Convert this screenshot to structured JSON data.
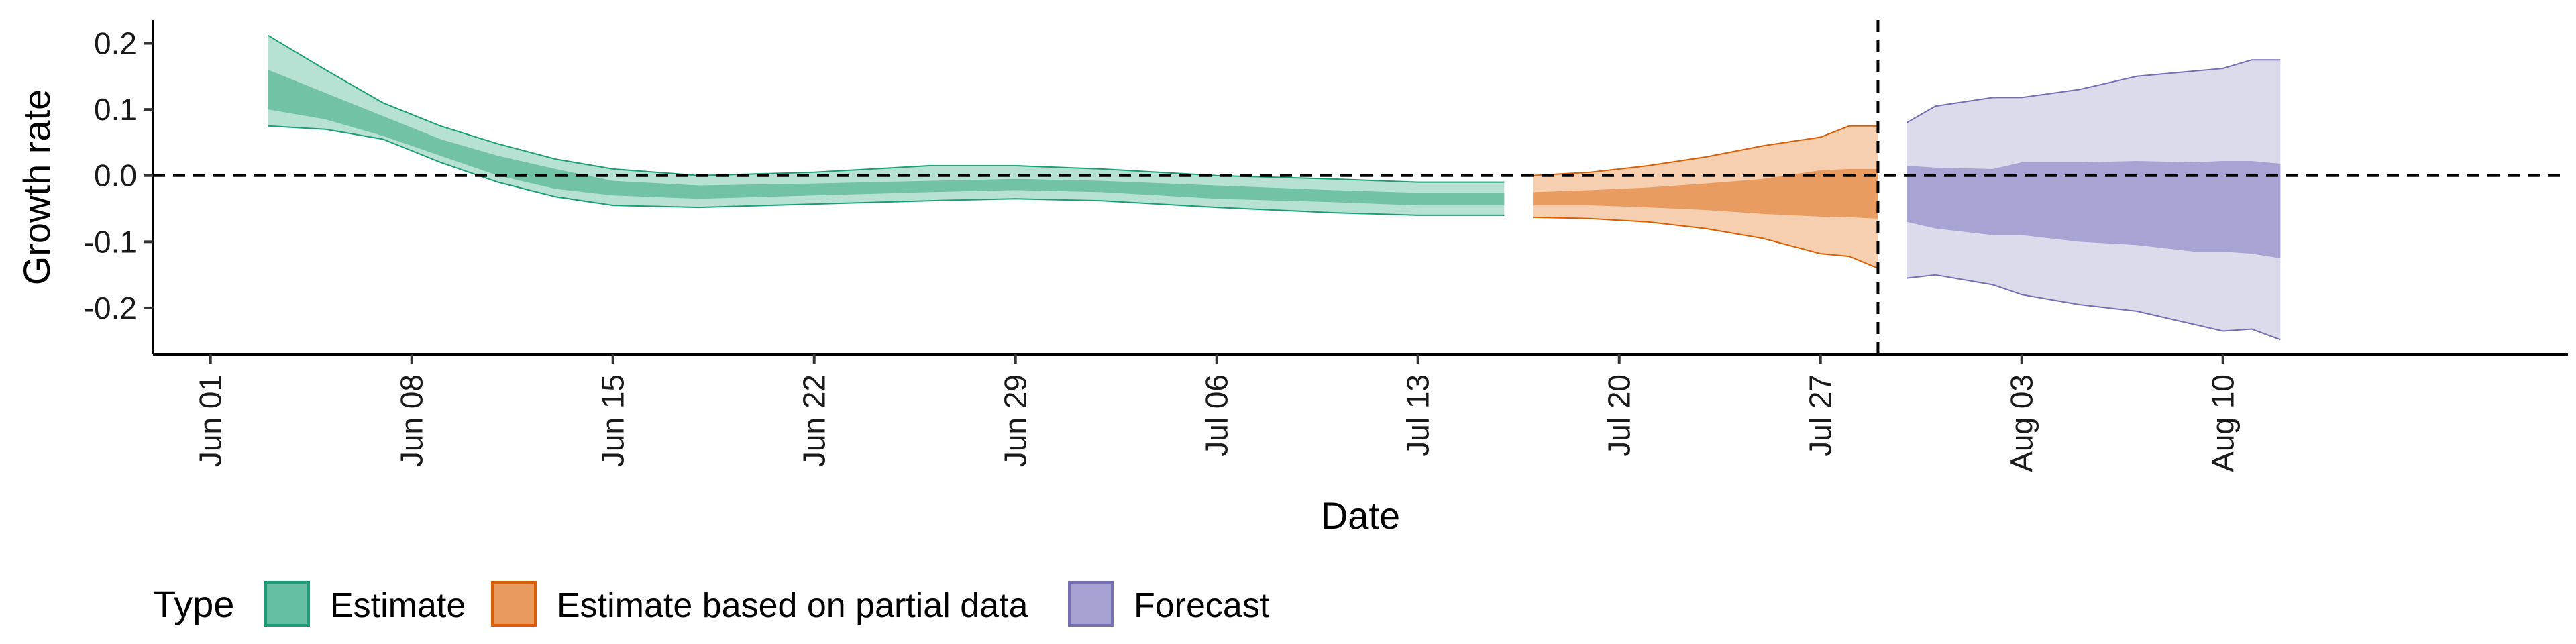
{
  "chart_data": {
    "type": "area",
    "xlabel": "Date",
    "ylabel": "Growth rate",
    "x_range": [
      "2020-05-30",
      "2020-08-22"
    ],
    "ylim": [
      -0.27,
      0.235
    ],
    "yticks": [
      0.2,
      0.1,
      0.0,
      -0.1,
      -0.2
    ],
    "ytick_labels": [
      "0.2",
      "0.1",
      "0.0",
      "-0.1",
      "-0.2"
    ],
    "xticks": [
      "2020-06-01",
      "2020-06-08",
      "2020-06-15",
      "2020-06-22",
      "2020-06-29",
      "2020-07-06",
      "2020-07-13",
      "2020-07-20",
      "2020-07-27",
      "2020-08-03",
      "2020-08-10"
    ],
    "xtick_labels": [
      "Jun 01",
      "Jun 08",
      "Jun 15",
      "Jun 22",
      "Jun 29",
      "Jul 06",
      "Jul 13",
      "Jul 20",
      "Jul 27",
      "Aug 03",
      "Aug 10"
    ],
    "hline_y": 0.0,
    "vline_x": "2020-07-29",
    "grid": false,
    "legend": {
      "title": "Type",
      "position": "bottom-left",
      "items": [
        {
          "label": "Estimate",
          "fill": "#66bfa3",
          "stroke": "#1b9e77"
        },
        {
          "label": "Estimate based on partial data",
          "fill": "#e99a5e",
          "stroke": "#d95f02"
        },
        {
          "label": "Forecast",
          "fill": "#a6a2d3",
          "stroke": "#7570b3"
        }
      ]
    },
    "series": [
      {
        "name": "Estimate",
        "outer_fill": "#b7e1d3",
        "inner_fill": "#72c2a6",
        "stroke": "#1b9e77",
        "x": [
          "2020-06-03",
          "2020-06-05",
          "2020-06-07",
          "2020-06-09",
          "2020-06-11",
          "2020-06-13",
          "2020-06-15",
          "2020-06-18",
          "2020-06-22",
          "2020-06-26",
          "2020-06-29",
          "2020-07-02",
          "2020-07-06",
          "2020-07-10",
          "2020-07-13",
          "2020-07-16"
        ],
        "lower_90": [
          0.075,
          0.07,
          0.055,
          0.02,
          -0.01,
          -0.032,
          -0.045,
          -0.048,
          -0.043,
          -0.038,
          -0.035,
          -0.038,
          -0.048,
          -0.056,
          -0.06,
          -0.06
        ],
        "lower_50": [
          0.1,
          0.085,
          0.06,
          0.03,
          0.0,
          -0.02,
          -0.03,
          -0.035,
          -0.03,
          -0.025,
          -0.022,
          -0.025,
          -0.035,
          -0.04,
          -0.045,
          -0.045
        ],
        "upper_50": [
          0.16,
          0.125,
          0.09,
          0.055,
          0.03,
          0.01,
          -0.008,
          -0.015,
          -0.012,
          -0.008,
          -0.005,
          -0.008,
          -0.015,
          -0.022,
          -0.026,
          -0.026
        ],
        "upper_90": [
          0.212,
          0.16,
          0.11,
          0.075,
          0.048,
          0.025,
          0.01,
          0.0,
          0.005,
          0.015,
          0.015,
          0.01,
          0.0,
          -0.005,
          -0.01,
          -0.01
        ]
      },
      {
        "name": "Estimate based on partial data",
        "outer_fill": "#f6cfb0",
        "inner_fill": "#e99c62",
        "stroke": "#d95f02",
        "x": [
          "2020-07-17",
          "2020-07-19",
          "2020-07-21",
          "2020-07-23",
          "2020-07-25",
          "2020-07-27",
          "2020-07-28",
          "2020-07-29"
        ],
        "lower_90": [
          -0.063,
          -0.065,
          -0.07,
          -0.08,
          -0.095,
          -0.118,
          -0.122,
          -0.14
        ],
        "lower_50": [
          -0.045,
          -0.045,
          -0.048,
          -0.052,
          -0.058,
          -0.062,
          -0.063,
          -0.065
        ],
        "upper_50": [
          -0.025,
          -0.022,
          -0.018,
          -0.012,
          -0.005,
          0.008,
          0.01,
          0.01
        ],
        "upper_90": [
          0.0,
          0.005,
          0.015,
          0.028,
          0.045,
          0.058,
          0.075,
          0.075
        ]
      },
      {
        "name": "Forecast",
        "outer_fill": "#dcdbeb",
        "inner_fill": "#a7a3d2",
        "stroke": "#7570b3",
        "x": [
          "2020-07-30",
          "2020-07-31",
          "2020-08-02",
          "2020-08-03",
          "2020-08-05",
          "2020-08-07",
          "2020-08-09",
          "2020-08-10",
          "2020-08-11",
          "2020-08-12"
        ],
        "lower_90": [
          -0.155,
          -0.15,
          -0.165,
          -0.18,
          -0.195,
          -0.205,
          -0.225,
          -0.235,
          -0.232,
          -0.248
        ],
        "lower_50": [
          -0.07,
          -0.08,
          -0.09,
          -0.09,
          -0.1,
          -0.105,
          -0.115,
          -0.115,
          -0.118,
          -0.125
        ],
        "upper_50": [
          0.015,
          0.012,
          0.01,
          0.02,
          0.02,
          0.022,
          0.02,
          0.022,
          0.022,
          0.018
        ],
        "upper_90": [
          0.08,
          0.105,
          0.118,
          0.118,
          0.13,
          0.15,
          0.158,
          0.162,
          0.175,
          0.175
        ]
      }
    ]
  }
}
